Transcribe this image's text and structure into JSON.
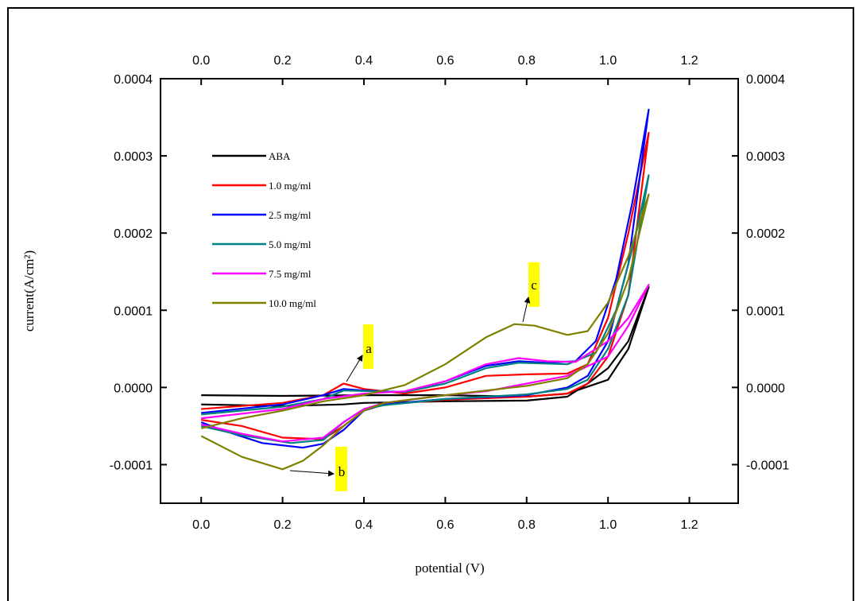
{
  "chart_data": {
    "type": "line",
    "x_label": "potential (V)",
    "y_label": "current(A/cm²)",
    "xlim": [
      -0.1,
      1.32
    ],
    "ylim": [
      -0.00015,
      0.0004
    ],
    "xticks": [
      {
        "value": 0,
        "label": "0.0"
      },
      0.2,
      0.4,
      0.6,
      0.8,
      {
        "value": 1,
        "label": "1.0"
      },
      1.2
    ],
    "yticks": [
      -0.0001,
      {
        "value": 0,
        "label": "0.0000"
      },
      0.0001,
      0.0002,
      0.0003,
      0.0004
    ],
    "legend": "upper left",
    "annotations": [
      "a",
      "b",
      "c"
    ],
    "series": [
      {
        "name": "ABA",
        "color": "#000000",
        "x": [
          0,
          0.2,
          0.4,
          0.6,
          0.8,
          0.9,
          1.0,
          1.05,
          1.1,
          1.05,
          1.0,
          0.95,
          0.9,
          0.8,
          0.6,
          0.4,
          0.35,
          0.2,
          0
        ],
        "values": [
          -1e-05,
          -1.1e-05,
          -1e-05,
          -1e-05,
          -1.2e-05,
          -8e-06,
          1e-05,
          5e-05,
          0.00013,
          6e-05,
          2.5e-05,
          5e-06,
          -1.2e-05,
          -1.7e-05,
          -1.8e-05,
          -2e-05,
          -2.2e-05,
          -2.4e-05,
          -2.2e-05
        ]
      },
      {
        "name": "1.0 mg/ml",
        "color": "#ff0000",
        "x": [
          0,
          0.1,
          0.2,
          0.3,
          0.35,
          0.4,
          0.5,
          0.6,
          0.7,
          0.8,
          0.9,
          0.95,
          1.0,
          1.05,
          1.1,
          1.05,
          1.0,
          0.95,
          0.9,
          0.8,
          0.6,
          0.45,
          0.4,
          0.35,
          0.3,
          0.2,
          0.1,
          0
        ],
        "values": [
          -2.8e-05,
          -2.4e-05,
          -2e-05,
          -1e-05,
          5e-06,
          -2e-06,
          -8e-06,
          0,
          1.5e-05,
          1.7e-05,
          1.8e-05,
          3e-05,
          9e-05,
          0.0002,
          0.00033,
          0.00012,
          4e-05,
          5e-06,
          -8e-06,
          -1.2e-05,
          -1.6e-05,
          -2.2e-05,
          -3e-05,
          -5e-05,
          -6.7e-05,
          -6.5e-05,
          -5e-05,
          -4.2e-05
        ]
      },
      {
        "name": "2.5 mg/ml",
        "color": "#0000ff",
        "x": [
          0,
          0.2,
          0.3,
          0.35,
          0.4,
          0.5,
          0.6,
          0.7,
          0.78,
          0.85,
          0.92,
          0.97,
          1.02,
          1.06,
          1.1,
          1.05,
          1.0,
          0.95,
          0.9,
          0.8,
          0.6,
          0.45,
          0.4,
          0.35,
          0.3,
          0.25,
          0.15,
          0.05,
          0
        ],
        "values": [
          -3.3e-05,
          -2.2e-05,
          -1e-05,
          -2e-06,
          -4e-06,
          -6e-06,
          8e-06,
          2.8e-05,
          3.4e-05,
          3.2e-05,
          3.4e-05,
          6e-05,
          0.00014,
          0.00024,
          0.00036,
          0.00016,
          6e-05,
          1.5e-05,
          0,
          -1e-05,
          -1.5e-05,
          -2.2e-05,
          -3e-05,
          -5.5e-05,
          -7.3e-05,
          -7.8e-05,
          -7.2e-05,
          -5.5e-05,
          -4.5e-05
        ]
      },
      {
        "name": "5.0 mg/ml",
        "color": "#008080",
        "x": [
          0,
          0.2,
          0.3,
          0.35,
          0.5,
          0.6,
          0.7,
          0.78,
          0.9,
          0.97,
          1.02,
          1.06,
          1.1,
          1.05,
          1.0,
          0.95,
          0.9,
          0.8,
          0.6,
          0.45,
          0.4,
          0.35,
          0.3,
          0.22,
          0.1,
          0
        ],
        "values": [
          -3.5e-05,
          -2.5e-05,
          -1.5e-05,
          -4e-06,
          -6e-06,
          5e-06,
          2.5e-05,
          3.2e-05,
          3e-05,
          4.5e-05,
          0.0001,
          0.00018,
          0.000275,
          0.00012,
          5e-05,
          1e-05,
          -2e-06,
          -9e-06,
          -1.5e-05,
          -2.3e-05,
          -2.8e-05,
          -4.5e-05,
          -6.8e-05,
          -7.2e-05,
          -6.2e-05,
          -5e-05
        ]
      },
      {
        "name": "7.5 mg/ml",
        "color": "#ff00ff",
        "x": [
          0,
          0.2,
          0.3,
          0.4,
          0.5,
          0.6,
          0.7,
          0.78,
          0.85,
          0.92,
          1.0,
          1.05,
          1.1,
          1.05,
          1.0,
          0.9,
          0.8,
          0.7,
          0.6,
          0.45,
          0.4,
          0.35,
          0.3,
          0.2,
          0.1,
          0
        ],
        "values": [
          -4e-05,
          -2.8e-05,
          -1.5e-05,
          -8e-06,
          -5e-06,
          8e-06,
          3e-05,
          3.8e-05,
          3.4e-05,
          3.3e-05,
          6e-05,
          9e-05,
          0.000133,
          8e-05,
          4e-05,
          1.5e-05,
          5e-06,
          -5e-06,
          -1e-05,
          -2e-05,
          -2.8e-05,
          -4.5e-05,
          -6.5e-05,
          -7e-05,
          -6e-05,
          -4.8e-05
        ]
      },
      {
        "name": "10.0 mg/ml",
        "color": "#808000",
        "x": [
          0,
          0.1,
          0.2,
          0.3,
          0.4,
          0.5,
          0.6,
          0.7,
          0.77,
          0.82,
          0.9,
          0.95,
          1.0,
          1.05,
          1.1,
          1.05,
          1.0,
          0.95,
          0.9,
          0.8,
          0.6,
          0.45,
          0.4,
          0.35,
          0.3,
          0.25,
          0.2,
          0.1,
          0
        ],
        "values": [
          -5.3e-05,
          -4e-05,
          -3e-05,
          -1.8e-05,
          -1e-05,
          3e-06,
          3e-05,
          6.5e-05,
          8.2e-05,
          8e-05,
          6.8e-05,
          7.3e-05,
          0.00011,
          0.00017,
          0.00025,
          0.00014,
          7e-05,
          3e-05,
          1.2e-05,
          2e-06,
          -1e-05,
          -2e-05,
          -3e-05,
          -5e-05,
          -7.5e-05,
          -9.5e-05,
          -0.000106,
          -9e-05,
          -6.3e-05
        ]
      }
    ]
  }
}
